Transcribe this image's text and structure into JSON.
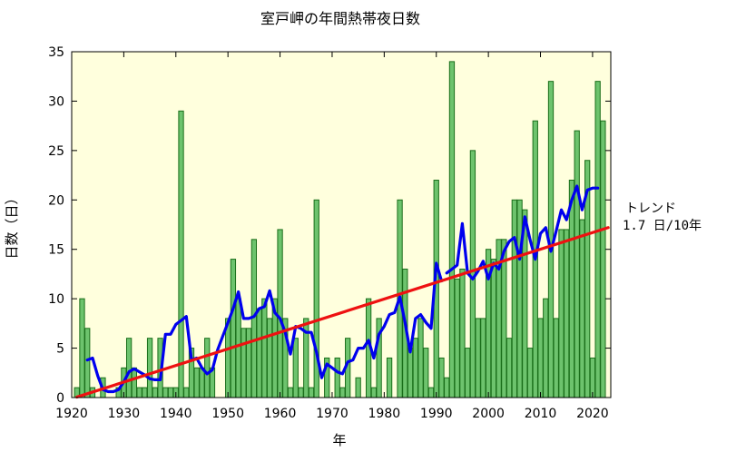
{
  "chart_data": {
    "type": "bar",
    "title": "室戸岬の年間熱帯夜日数",
    "xlabel": "年",
    "ylabel": "日数（日）",
    "xlim": [
      1920,
      2023.5
    ],
    "ylim": [
      0,
      35
    ],
    "x_ticks": [
      "1920",
      "1930",
      "1940",
      "1950",
      "1960",
      "1970",
      "1980",
      "1990",
      "2000",
      "2010",
      "2020"
    ],
    "y_ticks": [
      "0",
      "5",
      "10",
      "15",
      "20",
      "25",
      "30",
      "35"
    ],
    "colors": {
      "plot_background": "#ffffdd",
      "bar_fill": "#6dc36d",
      "bar_stroke": "#1a6e1a",
      "moving_average": "#0000ee",
      "trend": "#ee1111"
    },
    "bars": {
      "years": [
        1921,
        1922,
        1923,
        1924,
        1925,
        1926,
        1927,
        1928,
        1929,
        1930,
        1931,
        1932,
        1933,
        1934,
        1935,
        1936,
        1937,
        1938,
        1939,
        1940,
        1941,
        1942,
        1943,
        1944,
        1945,
        1946,
        1947,
        1948,
        1949,
        1950,
        1951,
        1952,
        1953,
        1954,
        1955,
        1956,
        1957,
        1958,
        1959,
        1960,
        1961,
        1962,
        1963,
        1964,
        1965,
        1966,
        1967,
        1968,
        1969,
        1970,
        1971,
        1972,
        1973,
        1974,
        1975,
        1976,
        1977,
        1978,
        1979,
        1980,
        1981,
        1982,
        1983,
        1984,
        1985,
        1986,
        1987,
        1988,
        1989,
        1990,
        1991,
        1992,
        1993,
        1994,
        1995,
        1996,
        1997,
        1998,
        1999,
        2000,
        2001,
        2002,
        2003,
        2004,
        2005,
        2006,
        2007,
        2008,
        2009,
        2010,
        2011,
        2012,
        2013,
        2014,
        2015,
        2016,
        2017,
        2018,
        2019,
        2020,
        2021,
        2022,
        2023
      ],
      "values": [
        1,
        10,
        7,
        1,
        0,
        2,
        0,
        0,
        1,
        3,
        6,
        3,
        1,
        1,
        6,
        1,
        6,
        1,
        1,
        1,
        29,
        1,
        5,
        3,
        3,
        6,
        3,
        0,
        0,
        8,
        14,
        10,
        7,
        7,
        16,
        9,
        10,
        8,
        10,
        17,
        8,
        1,
        6,
        1,
        8,
        1,
        20,
        0,
        4,
        0,
        4,
        1,
        6,
        0,
        2,
        0,
        10,
        1,
        8,
        0,
        4,
        0,
        20,
        13,
        5,
        6,
        8,
        5,
        1,
        22,
        4,
        2,
        34,
        12,
        13,
        5,
        25,
        8,
        8,
        15,
        14,
        16,
        16,
        6,
        20,
        20,
        19,
        5,
        28,
        8,
        10,
        32,
        8,
        17,
        17,
        22,
        27,
        18,
        24,
        4,
        32,
        28,
        0
      ]
    },
    "series": [
      {
        "x": [
          1923,
          1924,
          1925,
          1926,
          1927,
          1928,
          1929,
          1930,
          1931,
          1932,
          1933,
          1934,
          1935,
          1936,
          1937,
          1938,
          1939,
          1940,
          1941,
          1942,
          1943,
          1944,
          1945,
          1946,
          1947,
          1948,
          1949,
          1950,
          1951,
          1952,
          1953,
          1954,
          1955,
          1956,
          1957,
          1958,
          1959,
          1960,
          1961,
          1962,
          1963,
          1964,
          1965,
          1966,
          1967,
          1968,
          1969,
          1970,
          1971,
          1972,
          1973,
          1974,
          1975,
          1976,
          1977,
          1978,
          1979,
          1980,
          1981,
          1982,
          1983,
          1984,
          1985,
          1986,
          1987,
          1988,
          1989,
          1990,
          1991
        ],
        "y": [
          3.8,
          4.0,
          2.2,
          0.8,
          0.6,
          0.6,
          0.8,
          1.6,
          2.6,
          2.9,
          2.6,
          2.3,
          1.9,
          1.8,
          1.8,
          6.4,
          6.4,
          7.4,
          7.8,
          8.2,
          3.8,
          4.0,
          3.0,
          2.4,
          2.8,
          4.8,
          6.2,
          7.6,
          9.0,
          10.7,
          8.0,
          8.0,
          8.2,
          9.0,
          9.2,
          10.8,
          8.6,
          8.0,
          6.6,
          4.4,
          7.2,
          7.0,
          6.6,
          6.6,
          4.6,
          2.0,
          3.4,
          3.0,
          2.6,
          2.4,
          3.6,
          3.8,
          5.0,
          5.0,
          5.8,
          4.0,
          6.4,
          7.2,
          8.4,
          8.6,
          10.2,
          7.6,
          4.6,
          8.0,
          8.4,
          7.6,
          7.0,
          13.6,
          11.8
        ],
        "color": "#0000ee"
      },
      {
        "x": [
          1992,
          1993,
          1994,
          1995,
          1996,
          1997,
          1998,
          1999,
          2000,
          2001,
          2002,
          2003,
          2004,
          2005,
          2006,
          2007,
          2008,
          2009,
          2010,
          2011,
          2012,
          2013,
          2014,
          2015,
          2016,
          2017,
          2018,
          2019,
          2020,
          2021
        ],
        "y": [
          12.6,
          13.0,
          13.4,
          17.6,
          12.6,
          12.0,
          12.8,
          13.8,
          12.0,
          13.6,
          13.0,
          14.8,
          15.8,
          16.2,
          14.0,
          18.3,
          16.0,
          14.0,
          16.6,
          17.2,
          14.8,
          16.8,
          19.0,
          18.0,
          20.0,
          21.4,
          19.0,
          21.0,
          21.2,
          21.2
        ],
        "color": "#0000ee"
      }
    ],
    "trend": {
      "x": [
        1921,
        2023
      ],
      "y": [
        0.05,
        17.2
      ],
      "label_line1": "トレンド",
      "label_line2": "1.7 日/10年"
    }
  }
}
